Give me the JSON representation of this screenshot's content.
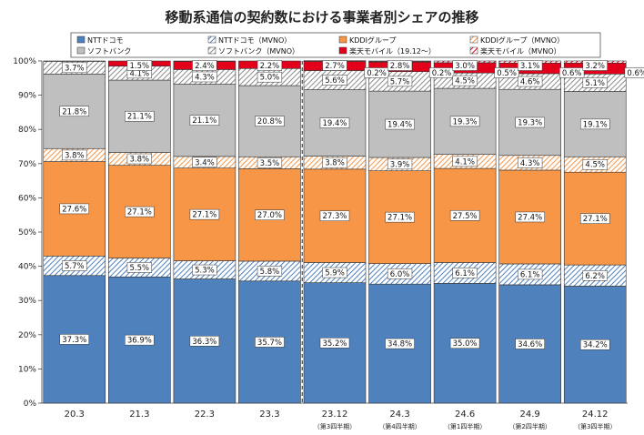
{
  "chart_data": {
    "type": "bar",
    "stacked": true,
    "title": "移動系通信の契約数における事業者別シェアの推移",
    "categories": [
      "20.3",
      "21.3",
      "22.3",
      "23.3",
      "23.12",
      "24.3",
      "24.6",
      "24.9",
      "24.12"
    ],
    "category_sublabels": [
      "",
      "",
      "",
      "",
      "（第3四半期）",
      "（第4四半期）",
      "（第1四半期）",
      "（第2四半期）",
      "（第3四半期）"
    ],
    "y_ticks": [
      "0%",
      "10%",
      "20%",
      "30%",
      "40%",
      "50%",
      "60%",
      "70%",
      "80%",
      "90%",
      "100%"
    ],
    "ylim": [
      0,
      100
    ],
    "grid": false,
    "legend_position": "top",
    "series": [
      {
        "name": "NTTドコモ",
        "color": "#4f81bd",
        "pattern": "solid",
        "values": [
          37.3,
          36.9,
          36.3,
          35.7,
          35.2,
          34.8,
          35.0,
          34.6,
          34.2
        ]
      },
      {
        "name": "NTTドコモ（MVNO）",
        "color": "#4f81bd",
        "pattern": "hatch",
        "values": [
          5.7,
          5.5,
          5.3,
          5.8,
          5.9,
          6.0,
          6.1,
          6.1,
          6.2
        ]
      },
      {
        "name": "KDDIグループ",
        "color": "#f79646",
        "pattern": "solid",
        "values": [
          27.6,
          27.1,
          27.1,
          27.0,
          27.3,
          27.1,
          27.5,
          27.4,
          27.1
        ]
      },
      {
        "name": "KDDIグループ（MVNO）",
        "color": "#f79646",
        "pattern": "hatch",
        "values": [
          3.8,
          3.8,
          3.4,
          3.5,
          3.8,
          3.9,
          4.1,
          4.3,
          4.5
        ]
      },
      {
        "name": "ソフトバンク",
        "color": "#bfbfbf",
        "pattern": "solid",
        "values": [
          21.8,
          21.1,
          21.1,
          20.8,
          19.4,
          19.4,
          19.3,
          19.3,
          19.1
        ]
      },
      {
        "name": "ソフトバンク（MVNO）",
        "color": "#bfbfbf",
        "pattern": "hatch",
        "values": [
          3.7,
          4.1,
          4.3,
          5.0,
          5.6,
          5.7,
          4.5,
          4.6,
          5.1
        ]
      },
      {
        "name": "楽天モバイル（19.12～）",
        "color": "#e3001b",
        "pattern": "solid",
        "values": [
          null,
          1.5,
          2.4,
          2.2,
          2.7,
          2.8,
          3.0,
          3.1,
          3.2
        ]
      },
      {
        "name": "楽天モバイル（MVNO）",
        "color": "#e3001b",
        "pattern": "hatch",
        "values": [
          null,
          null,
          null,
          null,
          0.2,
          0.2,
          0.5,
          0.6,
          0.6
        ]
      }
    ],
    "labels": [
      [
        "37.3%",
        "5.7%",
        "27.6%",
        "3.8%",
        "21.8%",
        "3.7%",
        "",
        ""
      ],
      [
        "36.9%",
        "5.5%",
        "27.1%",
        "3.8%",
        "21.1%",
        "4.1%",
        "1.5%",
        ""
      ],
      [
        "36.3%",
        "5.3%",
        "27.1%",
        "3.4%",
        "21.1%",
        "4.3%",
        "2.4%",
        ""
      ],
      [
        "35.7%",
        "5.8%",
        "27.0%",
        "3.5%",
        "20.8%",
        "5.0%",
        "2.2%",
        ""
      ],
      [
        "35.2%",
        "5.9%",
        "27.3%",
        "3.8%",
        "19.4%",
        "5.6%",
        "2.7%",
        "0.2%"
      ],
      [
        "34.8%",
        "6.0%",
        "27.1%",
        "3.9%",
        "19.4%",
        "5.7%",
        "2.8%",
        "0.2%"
      ],
      [
        "35.0%",
        "6.1%",
        "27.5%",
        "4.1%",
        "19.3%",
        "4.5%",
        "3.0%",
        "0.5%"
      ],
      [
        "34.6%",
        "6.1%",
        "27.4%",
        "4.3%",
        "19.3%",
        "4.6%",
        "3.1%",
        "0.6%"
      ],
      [
        "34.2%",
        "6.2%",
        "27.1%",
        "4.5%",
        "19.1%",
        "5.1%",
        "3.2%",
        "0.6%"
      ]
    ]
  }
}
